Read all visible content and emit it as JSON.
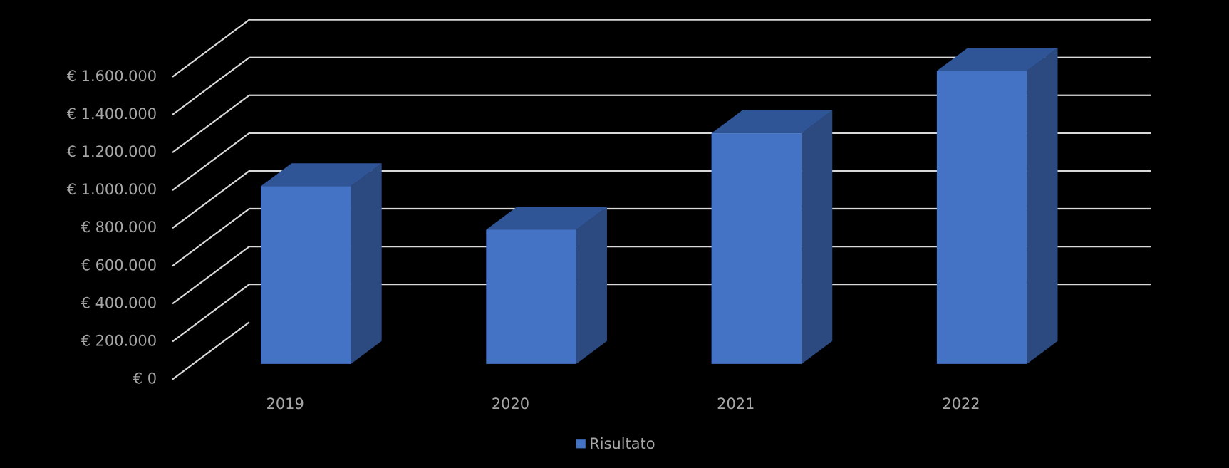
{
  "chart_data": {
    "type": "bar3d",
    "categories": [
      "2019",
      "2020",
      "2021",
      "2022"
    ],
    "series": [
      {
        "name": "Risultato",
        "color": "#4472c4",
        "values": [
          940000,
          710000,
          1220000,
          1550000
        ]
      }
    ],
    "ylim": [
      0,
      1600000
    ],
    "yticks": [
      {
        "value": 0,
        "label": "€ 0"
      },
      {
        "value": 200000,
        "label": "€ 200.000"
      },
      {
        "value": 400000,
        "label": "€ 400.000"
      },
      {
        "value": 600000,
        "label": "€ 600.000"
      },
      {
        "value": 800000,
        "label": "€ 800.000"
      },
      {
        "value": 1000000,
        "label": "€ 1.000.000"
      },
      {
        "value": 1200000,
        "label": "€ 1.200.000"
      },
      {
        "value": 1400000,
        "label": "€ 1.400.000"
      },
      {
        "value": 1600000,
        "label": "€ 1.600.000"
      }
    ],
    "grid": true,
    "legend": "bottom"
  }
}
